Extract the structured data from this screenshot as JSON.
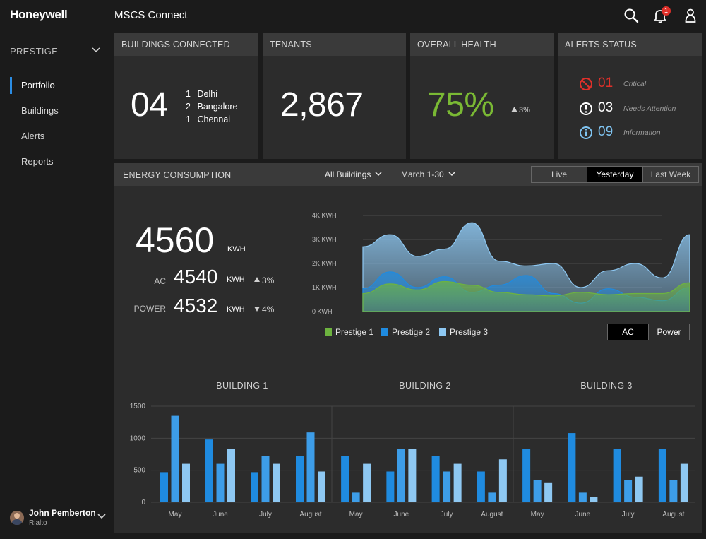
{
  "header": {
    "logo": "Honeywell",
    "app_title": "MSCS Connect",
    "notification_count": "1"
  },
  "sidebar": {
    "site": "PRESTIGE",
    "items": [
      {
        "label": "Portfolio",
        "active": true
      },
      {
        "label": "Buildings",
        "active": false
      },
      {
        "label": "Alerts",
        "active": false
      },
      {
        "label": "Reports",
        "active": false
      }
    ],
    "user": {
      "name": "John Pemberton",
      "site": "Rialto"
    }
  },
  "cards": {
    "buildings": {
      "title": "BUILDINGS CONNECTED",
      "value": "04",
      "cities": [
        {
          "count": "1",
          "name": "Delhi"
        },
        {
          "count": "2",
          "name": "Bangalore"
        },
        {
          "count": "1",
          "name": "Chennai"
        }
      ]
    },
    "tenants": {
      "title": "TENANTS",
      "value": "2,867"
    },
    "health": {
      "title": "OVERALL HEALTH",
      "value": "75%",
      "delta": "3%"
    },
    "alerts": {
      "title": "ALERTS STATUS",
      "rows": [
        {
          "count": "01",
          "label": "Critical",
          "color": "#e0302a"
        },
        {
          "count": "03",
          "label": "Needs Attention",
          "color": "#ffffff"
        },
        {
          "count": "09",
          "label": "Information",
          "color": "#7fc3f0"
        }
      ]
    }
  },
  "energy": {
    "title": "ENERGY CONSUMPTION",
    "filter_buildings": "All Buildings",
    "filter_date": "March 1-30",
    "ranges": [
      "Live",
      "Yesterday",
      "Last Week"
    ],
    "active_range": "Yesterday",
    "total": "4560",
    "total_unit": "KWH",
    "ac_label": "AC",
    "ac_value": "4540",
    "ac_unit": "KWH",
    "ac_delta": "3%",
    "power_label": "POWER",
    "power_value": "4532",
    "power_unit": "KWH",
    "power_delta": "4%",
    "modes": [
      "AC",
      "Power"
    ],
    "active_mode": "AC"
  },
  "chart_data": [
    {
      "type": "area",
      "title": "",
      "y_ticks": [
        "0 KWH",
        "1K KWH",
        "2K KWH",
        "3K KWH",
        "4K KWH"
      ],
      "ylim": [
        0,
        4000
      ],
      "grid": true,
      "legend_placement": "bottom-left",
      "x": [
        0,
        1,
        2,
        3,
        4,
        5,
        6,
        7,
        8,
        9,
        10,
        11,
        12
      ],
      "series": [
        {
          "name": "Prestige 3",
          "color": "#8ec8f2",
          "values": [
            2700,
            3200,
            2300,
            2600,
            3700,
            2100,
            1900,
            2000,
            1000,
            1700,
            2000,
            1400,
            3200
          ]
        },
        {
          "name": "Prestige 2",
          "color": "#1f8be0",
          "values": [
            950,
            1650,
            1000,
            1450,
            800,
            1100,
            1500,
            750,
            350,
            950,
            600,
            450,
            1000
          ]
        },
        {
          "name": "Prestige 1",
          "color": "#6db33f",
          "values": [
            750,
            1150,
            900,
            1250,
            1100,
            800,
            700,
            650,
            800,
            700,
            750,
            750,
            1200
          ]
        }
      ]
    },
    {
      "type": "bar",
      "title": "BUILDING 1",
      "categories": [
        "May",
        "June",
        "July",
        "August"
      ],
      "ylim": [
        0,
        1500
      ],
      "y_ticks": [
        "0",
        "500",
        "1000",
        "1500"
      ],
      "series": [
        {
          "color": "#1f8be0",
          "values": [
            470,
            980,
            470,
            720
          ]
        },
        {
          "color": "#3d9de8",
          "values": [
            1350,
            600,
            720,
            1090
          ]
        },
        {
          "color": "#8ec8f2",
          "values": [
            600,
            830,
            600,
            480
          ]
        }
      ]
    },
    {
      "type": "bar",
      "title": "BUILDING 2",
      "categories": [
        "May",
        "June",
        "July",
        "August"
      ],
      "ylim": [
        0,
        1500
      ],
      "series": [
        {
          "color": "#1f8be0",
          "values": [
            720,
            480,
            720,
            480
          ]
        },
        {
          "color": "#3d9de8",
          "values": [
            150,
            830,
            480,
            150
          ]
        },
        {
          "color": "#8ec8f2",
          "values": [
            600,
            830,
            600,
            670
          ]
        }
      ]
    },
    {
      "type": "bar",
      "title": "BUILDING 3",
      "categories": [
        "May",
        "June",
        "July",
        "August"
      ],
      "ylim": [
        0,
        1500
      ],
      "series": [
        {
          "color": "#1f8be0",
          "values": [
            830,
            1080,
            830,
            830
          ]
        },
        {
          "color": "#3d9de8",
          "values": [
            350,
            150,
            350,
            350
          ]
        },
        {
          "color": "#8ec8f2",
          "values": [
            300,
            80,
            400,
            600
          ]
        }
      ]
    }
  ]
}
